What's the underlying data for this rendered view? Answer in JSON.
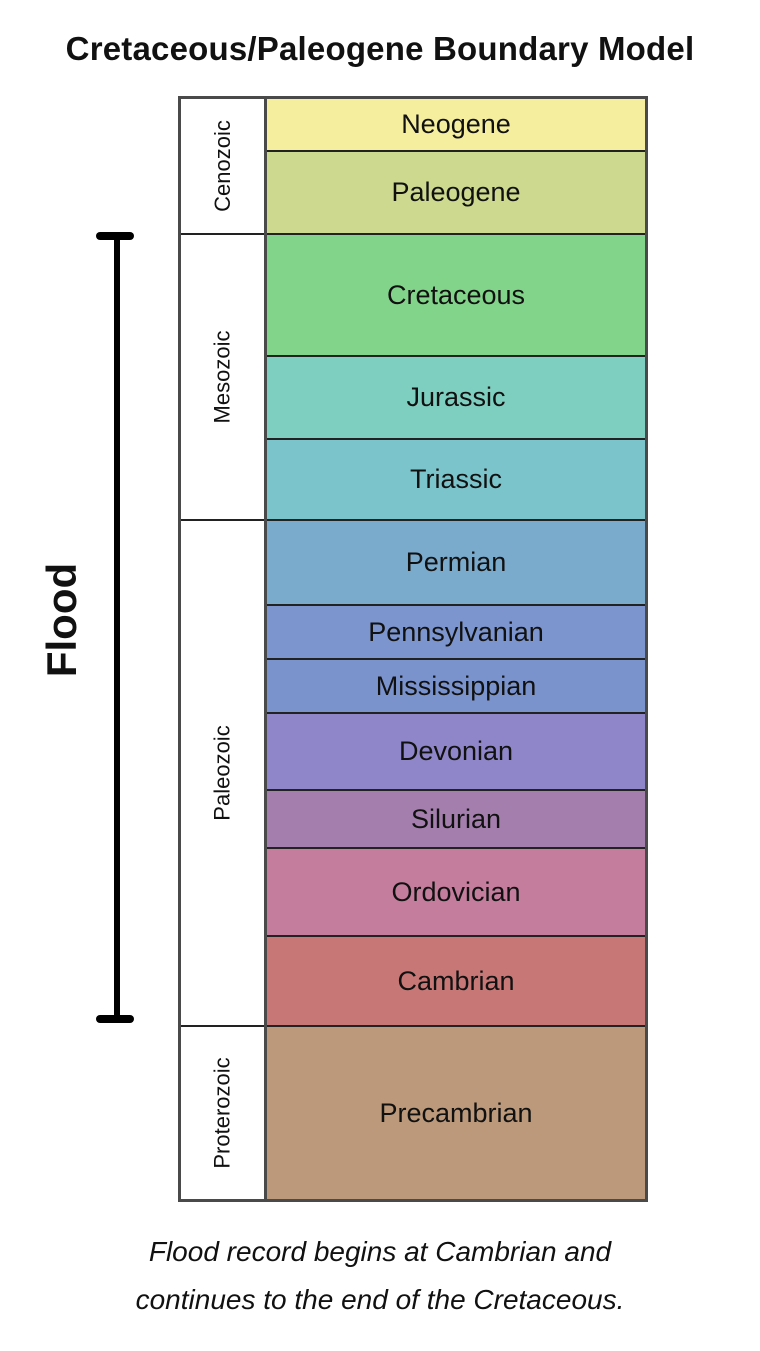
{
  "title": "Cretaceous/Paleogene Boundary Model",
  "eras": [
    {
      "label": "Cenozoic"
    },
    {
      "label": "Mesozoic"
    },
    {
      "label": "Paleozoic"
    },
    {
      "label": "Proterozoic"
    }
  ],
  "periods": [
    {
      "label": "Neogene",
      "color": "#f5ee9f"
    },
    {
      "label": "Paleogene",
      "color": "#cdd98e"
    },
    {
      "label": "Cretaceous",
      "color": "#83d48b"
    },
    {
      "label": "Jurassic",
      "color": "#7fcfc0"
    },
    {
      "label": "Triassic",
      "color": "#7cc4cb"
    },
    {
      "label": "Permian",
      "color": "#7aabcd"
    },
    {
      "label": "Pennsylvanian",
      "color": "#7c95ce"
    },
    {
      "label": "Mississippian",
      "color": "#7b93cd"
    },
    {
      "label": "Devonian",
      "color": "#8e86c8"
    },
    {
      "label": "Silurian",
      "color": "#a47fae"
    },
    {
      "label": "Ordovician",
      "color": "#c47d9c"
    },
    {
      "label": "Cambrian",
      "color": "#c77876"
    },
    {
      "label": "Precambrian",
      "color": "#bc997a"
    }
  ],
  "flood": {
    "label": "Flood"
  },
  "caption": {
    "line1": "Flood record begins at Cambrian and",
    "line2": "continues to the end of the Cretaceous."
  }
}
